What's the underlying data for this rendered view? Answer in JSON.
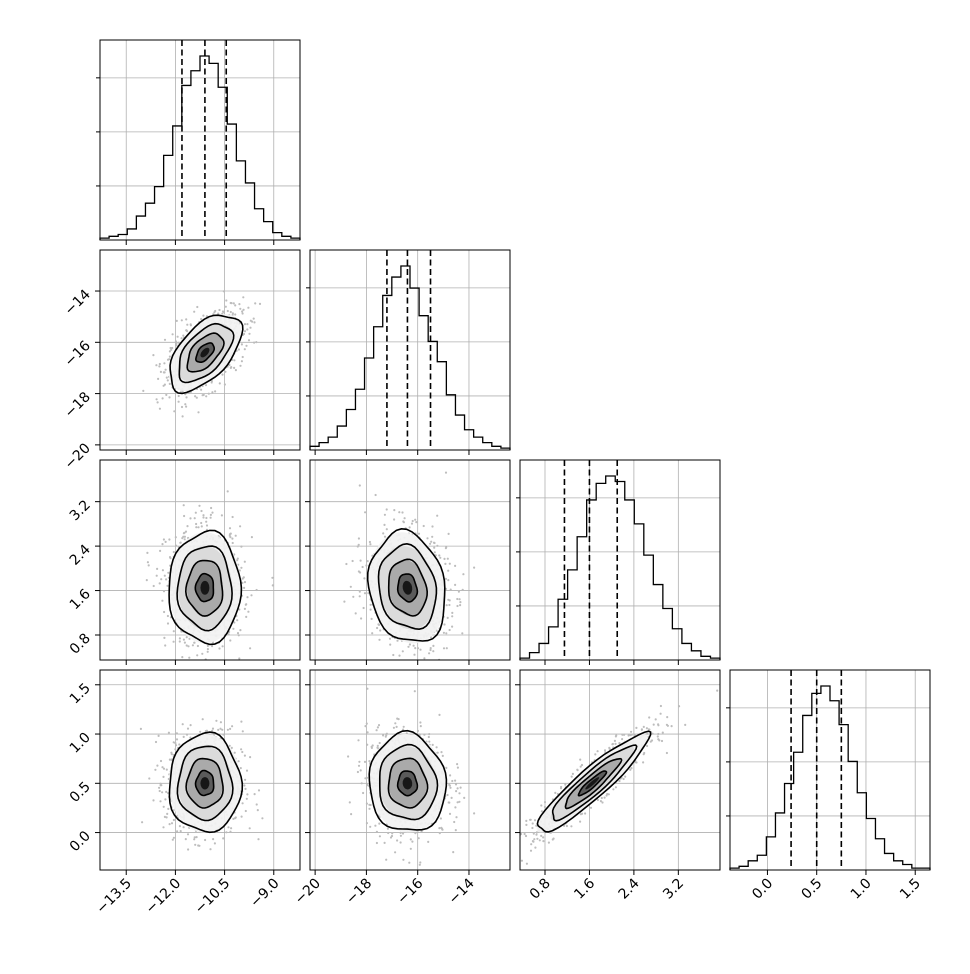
{
  "chart_data": {
    "type": "corner",
    "parameters": [
      {
        "index": 0,
        "range": [
          -14.3,
          -8.2
        ],
        "ticks": [
          -13.5,
          -12.0,
          -10.5,
          -9.0
        ],
        "tick_labels": [
          "−13.5",
          "−12.0",
          "−10.5",
          "−9.0"
        ],
        "quantiles": [
          -11.8,
          -11.1,
          -10.45
        ],
        "hist_ticks": 3
      },
      {
        "index": 1,
        "range": [
          -20.2,
          -12.4
        ],
        "ticks": [
          -20,
          -18,
          -16,
          -14
        ],
        "tick_labels": [
          "−20",
          "−18",
          "−16",
          "−14"
        ],
        "quantiles": [
          -17.2,
          -16.4,
          -15.5
        ],
        "hist_ticks": 3
      },
      {
        "index": 2,
        "range": [
          0.35,
          3.95
        ],
        "ticks": [
          0.8,
          1.6,
          2.4,
          3.2
        ],
        "tick_labels": [
          "0.8",
          "1.6",
          "2.4",
          "3.2"
        ],
        "quantiles": [
          1.15,
          1.6,
          2.1
        ],
        "hist_ticks": 3
      },
      {
        "index": 3,
        "range": [
          -0.38,
          1.65
        ],
        "ticks": [
          0.0,
          0.5,
          1.0,
          1.5
        ],
        "tick_labels": [
          "0.0",
          "0.5",
          "1.0",
          "1.5"
        ],
        "quantiles": [
          0.24,
          0.5,
          0.75
        ],
        "hist_ticks": 3
      }
    ],
    "histograms": [
      {
        "param": 0,
        "counts": [
          0.01,
          0.02,
          0.03,
          0.06,
          0.13,
          0.2,
          0.29,
          0.46,
          0.62,
          0.84,
          0.92,
          1.0,
          0.96,
          0.83,
          0.63,
          0.43,
          0.31,
          0.17,
          0.1,
          0.04,
          0.02,
          0.01
        ]
      },
      {
        "param": 1,
        "counts": [
          0.02,
          0.04,
          0.07,
          0.13,
          0.22,
          0.33,
          0.5,
          0.67,
          0.84,
          0.94,
          1.0,
          0.88,
          0.73,
          0.59,
          0.48,
          0.3,
          0.19,
          0.11,
          0.07,
          0.04,
          0.02,
          0.01
        ]
      },
      {
        "param": 2,
        "counts": [
          0.01,
          0.04,
          0.09,
          0.18,
          0.33,
          0.49,
          0.67,
          0.87,
          0.96,
          1.0,
          0.97,
          0.87,
          0.74,
          0.57,
          0.41,
          0.28,
          0.17,
          0.09,
          0.05,
          0.02,
          0.01
        ]
      },
      {
        "param": 3,
        "counts": [
          0.01,
          0.02,
          0.05,
          0.08,
          0.18,
          0.31,
          0.47,
          0.64,
          0.84,
          0.96,
          1.0,
          0.92,
          0.79,
          0.59,
          0.42,
          0.28,
          0.17,
          0.09,
          0.05,
          0.03,
          0.01,
          0.01
        ]
      }
    ],
    "posterior": {
      "means": [
        -11.1,
        -16.4,
        1.65,
        0.5
      ],
      "sds": [
        0.55,
        0.75,
        0.5,
        0.25
      ],
      "correlations": [
        [
          1.0,
          0.55,
          0.0,
          0.0
        ],
        [
          0.55,
          1.0,
          -0.15,
          -0.05
        ],
        [
          0.0,
          -0.15,
          1.0,
          0.92
        ],
        [
          0.0,
          -0.05,
          0.92,
          1.0
        ]
      ]
    },
    "contour_levels_sigma": [
      0.5,
      1.0,
      1.5,
      2.0
    ],
    "grid": true,
    "tick_rotation_deg": 45,
    "title": "",
    "legend": "none"
  }
}
